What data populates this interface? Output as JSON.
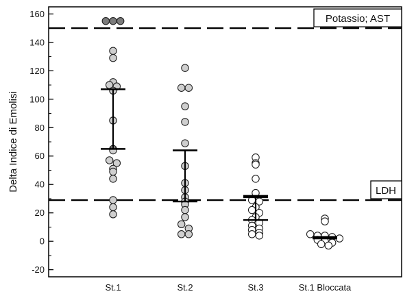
{
  "chart_data": {
    "type": "scatter",
    "title": "",
    "xlabel": "",
    "ylabel": "Delta Indice di Emolisi",
    "ylim": [
      -25,
      165
    ],
    "y_ticks": [
      -20,
      0,
      20,
      40,
      60,
      80,
      100,
      120,
      140,
      160
    ],
    "grid": false,
    "categories": [
      "St.1",
      "St.2",
      "St.3",
      "St.1 Bloccata"
    ],
    "reference_lines": [
      {
        "label": "Potassio; AST",
        "y": 150
      },
      {
        "label": "LDH",
        "y": 29
      }
    ],
    "groups": [
      {
        "category": "St.1",
        "values": [
          155,
          155,
          155,
          134,
          129,
          112,
          110,
          109,
          106,
          85,
          65,
          64,
          57,
          55,
          51,
          49,
          44,
          29,
          24,
          19
        ],
        "highlighted_values": [
          155,
          155,
          155
        ],
        "mean": 107,
        "error_low": 65,
        "error_high": 107
      },
      {
        "category": "St.2",
        "values": [
          122,
          108,
          108,
          95,
          84,
          69,
          53,
          41,
          36,
          31,
          28,
          26,
          22,
          17,
          12,
          9,
          5,
          5
        ],
        "mean": 64,
        "error_low": 28,
        "error_high": 64
      },
      {
        "category": "St.3",
        "values": [
          59,
          55,
          54,
          44,
          34,
          29,
          28,
          24,
          22,
          20,
          17,
          15,
          13,
          11,
          9,
          8,
          6,
          5,
          4
        ],
        "mean": 31,
        "error_low": 15,
        "error_high": 32
      },
      {
        "category": "St.1 Bloccata",
        "values": [
          16,
          14,
          5,
          4,
          4,
          3,
          2,
          1,
          0,
          -1,
          -2,
          -3
        ],
        "mean": 3,
        "error_low": 2,
        "error_high": 3
      }
    ]
  }
}
